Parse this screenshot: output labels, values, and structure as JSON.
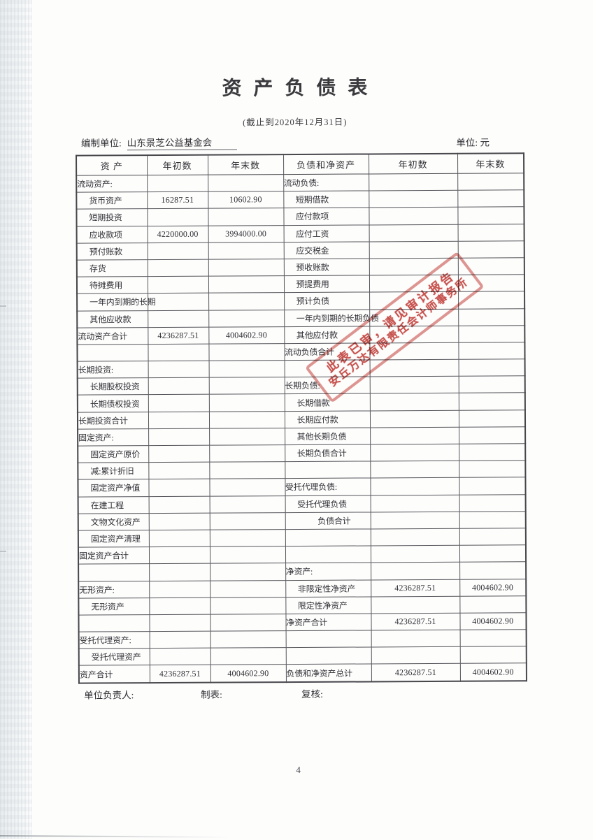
{
  "page": {
    "title": "资产负债表",
    "subtitle": "(截止到2020年12月31日)",
    "prepared_by_label": "编制单位:",
    "prepared_by_value": "山东景芝公益基金会",
    "unit_label": "单位: 元",
    "page_number": "4"
  },
  "table": {
    "headers": [
      "资  产",
      "年初数",
      "年末数",
      "负债和净资产",
      "年初数",
      "年末数"
    ],
    "rows": [
      {
        "l": "流动资产:",
        "li": 0,
        "v1": "",
        "v2": "",
        "r": "流动负债:",
        "ri": 0,
        "v3": "",
        "v4": ""
      },
      {
        "l": "货币资产",
        "li": 1,
        "v1": "16287.51",
        "v2": "10602.90",
        "r": "短期借款",
        "ri": 1,
        "v3": "",
        "v4": ""
      },
      {
        "l": "短期投资",
        "li": 1,
        "v1": "",
        "v2": "",
        "r": "应付款项",
        "ri": 1,
        "v3": "",
        "v4": ""
      },
      {
        "l": "应收款项",
        "li": 1,
        "v1": "4220000.00",
        "v2": "3994000.00",
        "r": "应付工资",
        "ri": 1,
        "v3": "",
        "v4": ""
      },
      {
        "l": "预付账款",
        "li": 1,
        "v1": "",
        "v2": "",
        "r": "应交税金",
        "ri": 1,
        "v3": "",
        "v4": ""
      },
      {
        "l": "存货",
        "li": 1,
        "v1": "",
        "v2": "",
        "r": "预收账款",
        "ri": 1,
        "v3": "",
        "v4": ""
      },
      {
        "l": "待摊费用",
        "li": 1,
        "v1": "",
        "v2": "",
        "r": "预提费用",
        "ri": 1,
        "v3": "",
        "v4": ""
      },
      {
        "l": "一年内到期的长期",
        "li": 1,
        "v1": "",
        "v2": "",
        "r": "预计负债",
        "ri": 1,
        "v3": "",
        "v4": ""
      },
      {
        "l": "其他应收款",
        "li": 1,
        "v1": "",
        "v2": "",
        "r": "一年内到期的长期负债",
        "ri": 1,
        "v3": "",
        "v4": ""
      },
      {
        "l": "流动资产合计",
        "li": 0,
        "v1": "4236287.51",
        "v2": "4004602.90",
        "r": "其他应付款",
        "ri": 1,
        "v3": "",
        "v4": ""
      },
      {
        "l": "",
        "li": 0,
        "v1": "",
        "v2": "",
        "r": "流动负债合计",
        "ri": 0,
        "v3": "",
        "v4": ""
      },
      {
        "l": "长期投资:",
        "li": 0,
        "v1": "",
        "v2": "",
        "r": "",
        "ri": 0,
        "v3": "",
        "v4": ""
      },
      {
        "l": "长期股权投资",
        "li": 1,
        "v1": "",
        "v2": "",
        "r": "长期负债:",
        "ri": 0,
        "v3": "",
        "v4": ""
      },
      {
        "l": "长期债权投资",
        "li": 1,
        "v1": "",
        "v2": "",
        "r": "长期借款",
        "ri": 1,
        "v3": "",
        "v4": ""
      },
      {
        "l": "长期投资合计",
        "li": 0,
        "v1": "",
        "v2": "",
        "r": "长期应付款",
        "ri": 1,
        "v3": "",
        "v4": ""
      },
      {
        "l": "固定资产:",
        "li": 0,
        "v1": "",
        "v2": "",
        "r": "其他长期负债",
        "ri": 1,
        "v3": "",
        "v4": ""
      },
      {
        "l": "固定资产原价",
        "li": 1,
        "v1": "",
        "v2": "",
        "r": "长期负债合计",
        "ri": 1,
        "v3": "",
        "v4": ""
      },
      {
        "l": "减:累计折旧",
        "li": 1,
        "v1": "",
        "v2": "",
        "r": "",
        "ri": 0,
        "v3": "",
        "v4": ""
      },
      {
        "l": "固定资产净值",
        "li": 1,
        "v1": "",
        "v2": "",
        "r": "受托代理负债:",
        "ri": 0,
        "v3": "",
        "v4": ""
      },
      {
        "l": "在建工程",
        "li": 1,
        "v1": "",
        "v2": "",
        "r": "受托代理负债",
        "ri": 1,
        "v3": "",
        "v4": ""
      },
      {
        "l": "文物文化资产",
        "li": 1,
        "v1": "",
        "v2": "",
        "r": "负债合计",
        "ri": 2,
        "v3": "",
        "v4": ""
      },
      {
        "l": "固定资产清理",
        "li": 1,
        "v1": "",
        "v2": "",
        "r": "",
        "ri": 0,
        "v3": "",
        "v4": ""
      },
      {
        "l": "固定资产合计",
        "li": 0,
        "v1": "",
        "v2": "",
        "r": "",
        "ri": 0,
        "v3": "",
        "v4": ""
      },
      {
        "l": "",
        "li": 0,
        "v1": "",
        "v2": "",
        "r": "净资产:",
        "ri": 0,
        "v3": "",
        "v4": ""
      },
      {
        "l": "无形资产:",
        "li": 0,
        "v1": "",
        "v2": "",
        "r": "非限定性净资产",
        "ri": 1,
        "v3": "4236287.51",
        "v4": "4004602.90"
      },
      {
        "l": "无形资产",
        "li": 1,
        "v1": "",
        "v2": "",
        "r": "限定性净资产",
        "ri": 1,
        "v3": "",
        "v4": ""
      },
      {
        "l": "",
        "li": 0,
        "v1": "",
        "v2": "",
        "r": "净资产合计",
        "ri": 0,
        "v3": "4236287.51",
        "v4": "4004602.90"
      },
      {
        "l": "受托代理资产:",
        "li": 0,
        "v1": "",
        "v2": "",
        "r": "",
        "ri": 0,
        "v3": "",
        "v4": ""
      },
      {
        "l": "受托代理资产",
        "li": 1,
        "v1": "",
        "v2": "",
        "r": "",
        "ri": 0,
        "v3": "",
        "v4": ""
      },
      {
        "l": "资产合计",
        "li": 0,
        "v1": "4236287.51",
        "v2": "4004602.90",
        "r": "负债和净资产总计",
        "ri": 0,
        "v3": "4236287.51",
        "v4": "4004602.90"
      }
    ]
  },
  "stamp": {
    "line1": "此表已审，请见审计报告",
    "line2": "安丘万达有限责任会计师事务所",
    "color": "#c4463f"
  },
  "footer": {
    "responsible_label": "单位负责人:",
    "preparer_label": "制表:",
    "reviewer_label": "复核:"
  }
}
